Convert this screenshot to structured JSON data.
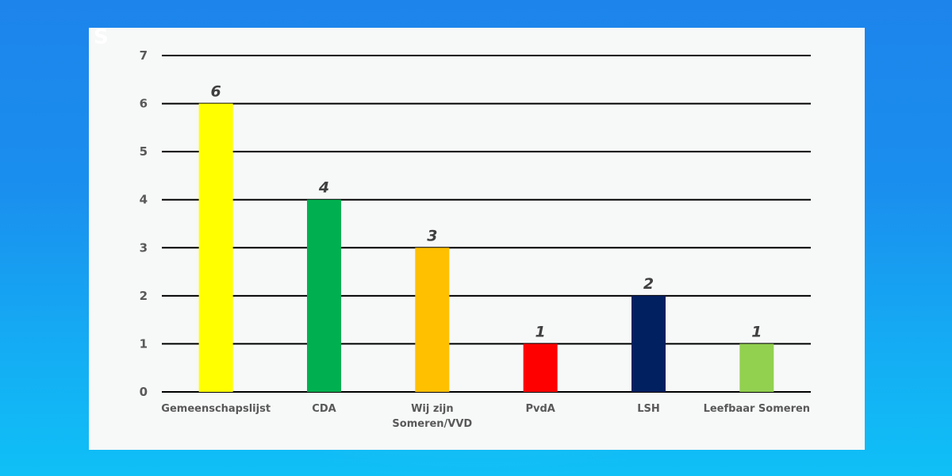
{
  "logo": {
    "text": "S"
  },
  "chart_data": {
    "type": "bar",
    "categories": [
      "Gemeenschapslijst",
      "CDA",
      "Wij zijn Someren/VVD",
      "PvdA",
      "LSH",
      "Leefbaar Someren"
    ],
    "category_lines": [
      [
        "Gemeenschapslijst"
      ],
      [
        "CDA"
      ],
      [
        "Wij zijn",
        "Someren/VVD"
      ],
      [
        "PvdA"
      ],
      [
        "LSH"
      ],
      [
        "Leefbaar Someren"
      ]
    ],
    "values": [
      6,
      4,
      3,
      1,
      2,
      1
    ],
    "colors": [
      "#ffff00",
      "#00b050",
      "#ffc000",
      "#ff0000",
      "#002060",
      "#92d050"
    ],
    "ylim": [
      0,
      7
    ],
    "yticks": [
      0,
      1,
      2,
      3,
      4,
      5,
      6,
      7
    ],
    "grid": true,
    "title": "",
    "xlabel": "",
    "ylabel": ""
  }
}
